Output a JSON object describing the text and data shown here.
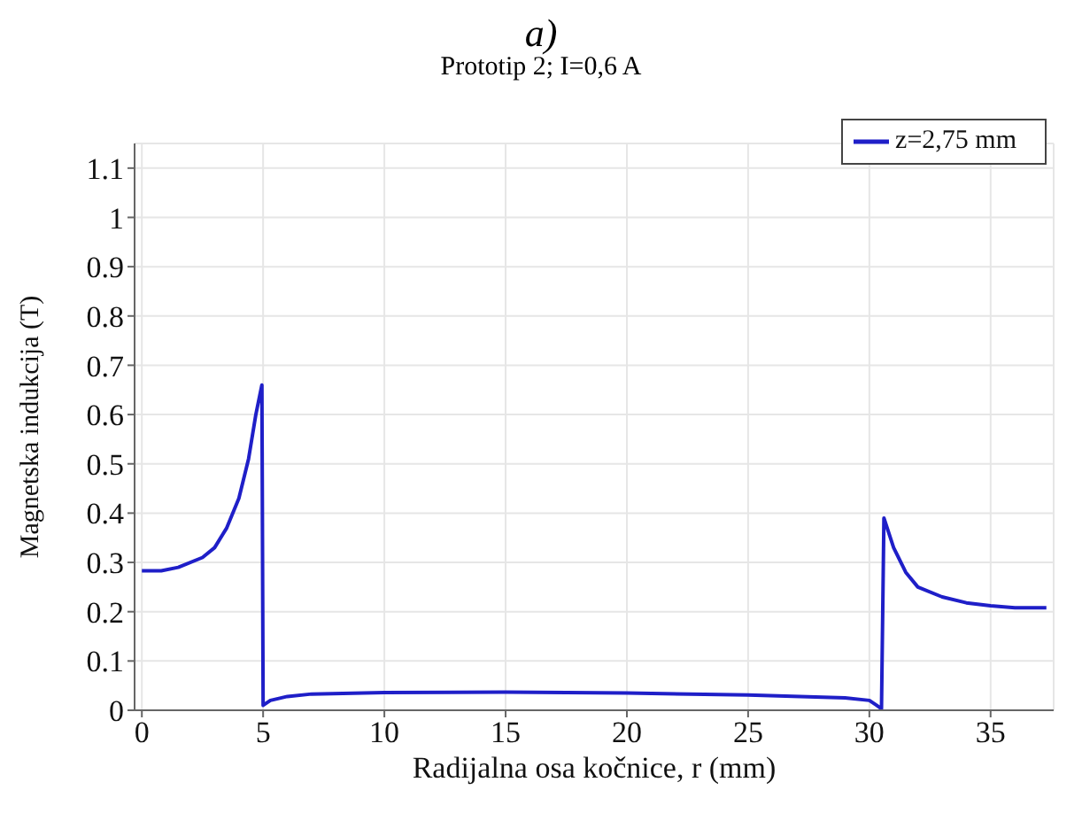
{
  "chart_data": {
    "type": "line",
    "title": "a)",
    "subtitle": "Prototip 2; I=0,6 A",
    "xlabel": "Radijalna osa kočnice, r (mm)",
    "ylabel": "Magnetska indukcija (T)",
    "xlim": [
      -0.3,
      37.6
    ],
    "xticks": [
      0,
      5,
      10,
      15,
      20,
      25,
      30,
      35
    ],
    "ylim": [
      0,
      1.15
    ],
    "yticks": [
      0,
      0.1,
      0.2,
      0.3,
      0.4,
      0.5,
      0.6,
      0.7,
      0.8,
      0.9,
      1,
      1.1
    ],
    "grid": true,
    "legend": "top right",
    "marker": "none",
    "line_style": "solid",
    "series": [
      {
        "name": "z=2,75 mm",
        "color": "#1f1fc8",
        "x": [
          0,
          0.8,
          1.5,
          2.5,
          3,
          3.5,
          4,
          4.4,
          4.7,
          4.95,
          5,
          5.3,
          6,
          7,
          10,
          15,
          20,
          25,
          29,
          30,
          30.3,
          30.5,
          30.6,
          31,
          31.5,
          32,
          33,
          34,
          35,
          36,
          37.3
        ],
        "values": [
          0.283,
          0.283,
          0.29,
          0.31,
          0.33,
          0.37,
          0.43,
          0.51,
          0.6,
          0.66,
          0.01,
          0.02,
          0.028,
          0.033,
          0.036,
          0.037,
          0.035,
          0.031,
          0.025,
          0.02,
          0.01,
          0.003,
          0.39,
          0.33,
          0.28,
          0.25,
          0.23,
          0.218,
          0.212,
          0.208,
          0.208
        ]
      }
    ]
  }
}
